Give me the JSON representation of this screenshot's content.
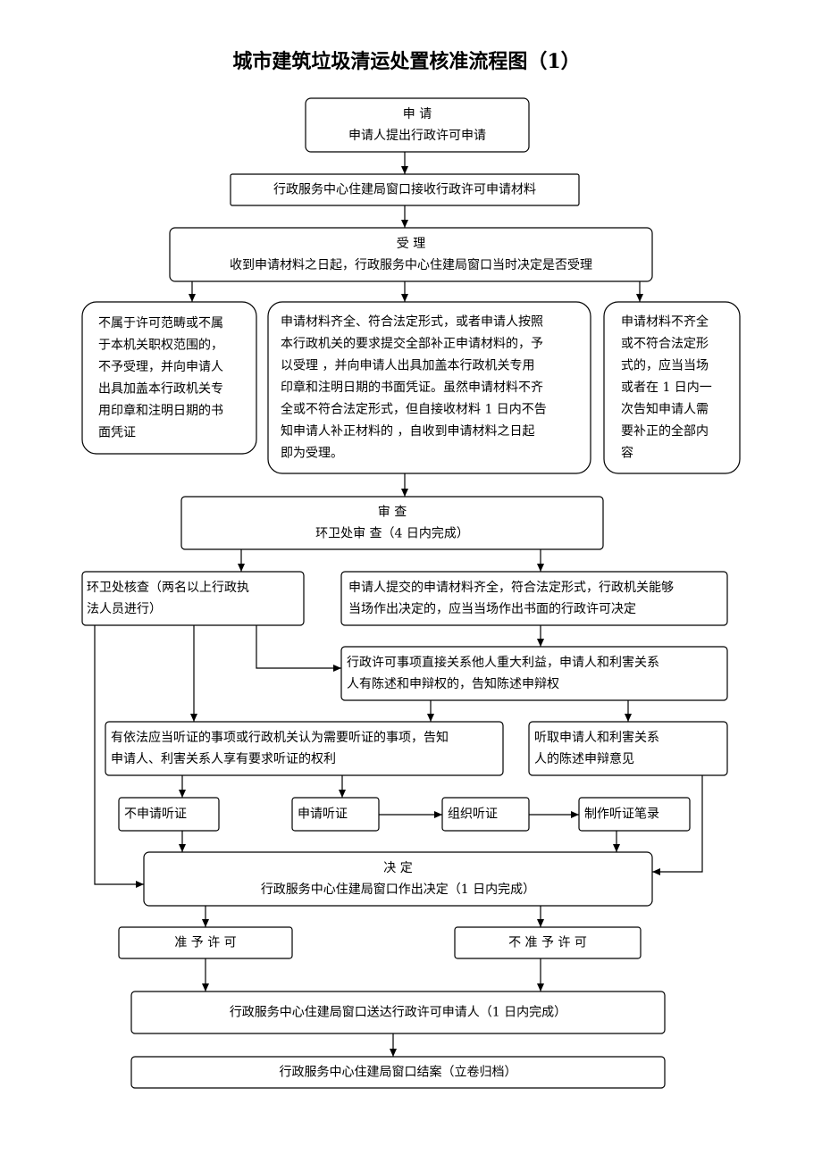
{
  "title": "城市建筑垃圾清运处置核准流程图（1）",
  "nodes": [
    {
      "lines": [
        "申 请",
        "申请人提出行政许可申请"
      ]
    },
    {
      "lines": [
        "行政服务中心住建局窗口接收行政许可申请材料"
      ]
    },
    {
      "lines": [
        "受 理",
        "收到申请材料之日起，行政服务中心住建局窗口当时决定是否受理"
      ]
    },
    {
      "lines": [
        "不属于许可范畴或不属",
        "于本机关职权范围的，",
        "不予受理，并向申请人",
        "出具加盖本行政机关专",
        "用印章和注明日期的书",
        "面凭证"
      ]
    },
    {
      "lines": [
        "申请材料齐全、符合法定形式，或者申请人按照",
        "本行政机关的要求提交全部补正申请材料的，予",
        "以受理 ，并向申请人出具加盖本行政机关专用",
        "印章和注明日期的书面凭证。虽然申请材料不齐",
        "全或不符合法定形式，但自接收材料 1 日内不告",
        "知申请人补正材料的 ，自收到申请材料之日起",
        "即为受理。"
      ]
    },
    {
      "lines": [
        "申请材料不齐全",
        "或不符合法定形",
        "式的，应当当场",
        "或者在 1 日内一",
        "次告知申请人需",
        "要补正的全部内",
        "容"
      ]
    },
    {
      "lines": [
        "审 查",
        "环卫处审 查（4 日内完成）"
      ]
    },
    {
      "lines": [
        "环卫处核查（两名以上行政执",
        "法人员进行）"
      ]
    },
    {
      "lines": [
        "申请人提交的申请材料齐全，符合法定形式，行政机关能够",
        "当场作出决定的，应当当场作出书面的行政许可决定"
      ]
    },
    {
      "lines": [
        "行政许可事项直接关系他人重大利益，申请人和利害关系",
        "人有陈述和申辩权的，告知陈述申辩权"
      ]
    },
    {
      "lines": [
        "有依法应当听证的事项或行政机关认为需要听证的事项，告知",
        "申请人、利害关系人享有要求听证的权利"
      ]
    },
    {
      "lines": [
        "听取申请人和利害关系",
        "人的陈述申辩意见"
      ]
    },
    {
      "lines": [
        "不申请听证"
      ]
    },
    {
      "lines": [
        "申请听证"
      ]
    },
    {
      "lines": [
        "组织听证"
      ]
    },
    {
      "lines": [
        "制作听证笔录"
      ]
    },
    {
      "lines": [
        "决 定",
        "行政服务中心住建局窗口作出决定（1 日内完成）"
      ]
    },
    {
      "lines": [
        "准 予 许 可"
      ]
    },
    {
      "lines": [
        "不 准 予 许 可"
      ]
    },
    {
      "lines": [
        "行政服务中心住建局窗口送达行政许可申请人（1 日内完成）"
      ]
    },
    {
      "lines": [
        "行政服务中心住建局窗口结案（立卷归档）"
      ]
    }
  ]
}
